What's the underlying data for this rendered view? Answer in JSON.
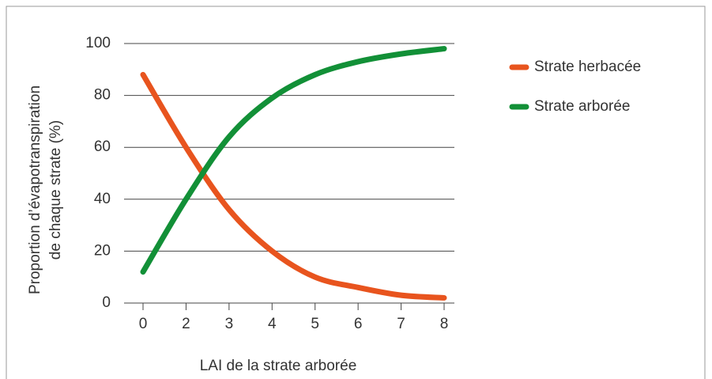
{
  "chart_data": {
    "type": "line",
    "x_label": "LAI de la strate arborée",
    "y_label": [
      "Proportion d’évapotranspiration",
      "de chaque strate (%)"
    ],
    "categories": [
      0,
      2,
      3,
      4,
      5,
      6,
      7,
      8
    ],
    "series": [
      {
        "name": "Strate herbacée",
        "color": "#e8541e",
        "values": [
          88,
          60,
          36,
          20,
          10,
          6,
          3,
          2
        ]
      },
      {
        "name": "Strate arborée",
        "color": "#129037",
        "values": [
          12,
          40,
          64,
          79,
          88,
          93,
          96,
          98
        ]
      }
    ],
    "ylim": [
      0,
      100
    ],
    "yticks": [
      0,
      20,
      40,
      60,
      80,
      100
    ],
    "grid": true,
    "legend": "right"
  }
}
